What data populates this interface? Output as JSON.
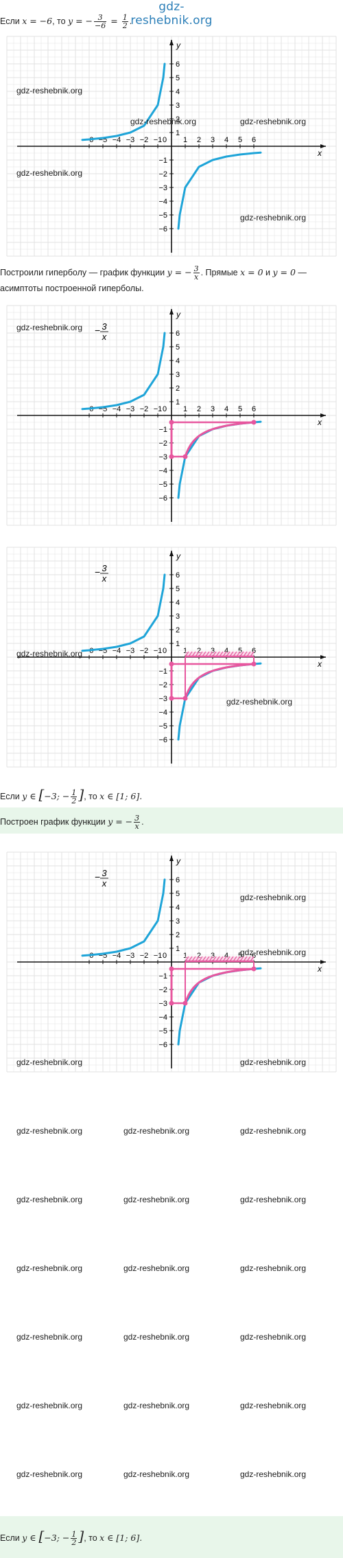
{
  "header_watermark": "gdz-reshebnik.org",
  "watermark_text": "gdz-reshebnik.org",
  "text": {
    "line1_prefix": "Если ",
    "line1_math_a": "x = −6",
    "line1_mid": ", то ",
    "line1_math_b": "y = −",
    "line1_frac1_num": "3",
    "line1_frac1_den": "−6",
    "line1_eq": " = ",
    "line1_frac2_num": "1",
    "line1_frac2_den": "2",
    "line1_end": ".",
    "line2a_prefix": "Построили гиперболу — график функции ",
    "line2a_math": "y = −",
    "line2a_frac_num": "3",
    "line2a_frac_den": "x",
    "line2a_mid": ". Прямые ",
    "line2a_math2": "x = 0",
    "line2a_and": " и ",
    "line2a_math3": "y = 0",
    "line2a_end": " —",
    "line2b": "асимптоты построенной гиперболы.",
    "line3_prefix": "Если ",
    "line3_math": "y ∈ ",
    "line3_interval_left": "−3; −",
    "line3_frac_num": "1",
    "line3_frac_den": "2",
    "line3_mid": ", то ",
    "line3_math2": "x ∈ [1; 6].",
    "line4_prefix": "Построен график функции ",
    "line4_math": "y = −",
    "line4_frac_num": "3",
    "line4_frac_den": "x",
    "line4_end": "."
  },
  "colors": {
    "hyperbola": "#1ea4d8",
    "highlight": "#e7569e",
    "grid": "#e2e2e2",
    "axis": "#111111",
    "green_band": "#e8f6ea"
  },
  "chart_data": [
    {
      "type": "line",
      "function": "y = -3/x",
      "xlim": [
        -7,
        7
      ],
      "ylim": [
        -7,
        7
      ],
      "x_ticks": [
        -6,
        -5,
        -4,
        -3,
        -2,
        -1,
        0,
        1,
        2,
        3,
        4,
        5,
        6
      ],
      "y_ticks": [
        -6,
        -5,
        -4,
        -3,
        -2,
        -1,
        1,
        2,
        3,
        4,
        5,
        6
      ],
      "xlabel": "x",
      "ylabel": "y",
      "series": [
        {
          "points": [
            [
              -6.5,
              0.46
            ],
            [
              -6,
              0.5
            ],
            [
              -5,
              0.6
            ],
            [
              -4,
              0.75
            ],
            [
              -3,
              1
            ],
            [
              -2,
              1.5
            ],
            [
              -1,
              3
            ],
            [
              -0.6,
              5
            ],
            [
              -0.5,
              6
            ],
            [
              0.5,
              -6
            ],
            [
              0.6,
              -5
            ],
            [
              1,
              -3
            ],
            [
              2,
              -1.5
            ],
            [
              3,
              -1
            ],
            [
              4,
              -0.75
            ],
            [
              5,
              -0.6
            ],
            [
              6,
              -0.5
            ],
            [
              6.5,
              -0.46
            ]
          ]
        }
      ]
    },
    {
      "type": "line",
      "function": "y = -3/x",
      "xlim": [
        -7,
        7
      ],
      "ylim": [
        -7,
        7
      ],
      "x_ticks": [
        -6,
        -5,
        -4,
        -3,
        -2,
        -1,
        0,
        1,
        2,
        3,
        4,
        5,
        6
      ],
      "y_ticks": [
        -6,
        -5,
        -4,
        -3,
        -2,
        -1,
        1,
        2,
        3,
        4,
        5,
        6
      ],
      "xlabel": "x",
      "ylabel": "y",
      "curve_label_num": "3",
      "curve_label_den": "x",
      "series": [
        {
          "points": [
            [
              -6.5,
              0.46
            ],
            [
              -6,
              0.5
            ],
            [
              -5,
              0.6
            ],
            [
              -4,
              0.75
            ],
            [
              -3,
              1
            ],
            [
              -2,
              1.5
            ],
            [
              -1,
              3
            ],
            [
              -0.6,
              5
            ],
            [
              -0.5,
              6
            ],
            [
              0.5,
              -6
            ],
            [
              0.6,
              -5
            ],
            [
              1,
              -3
            ],
            [
              2,
              -1.5
            ],
            [
              3,
              -1
            ],
            [
              4,
              -0.75
            ],
            [
              5,
              -0.6
            ],
            [
              6,
              -0.5
            ],
            [
              6.5,
              -0.46
            ]
          ]
        }
      ],
      "highlight_segment": [
        [
          1,
          -3
        ],
        [
          6,
          -0.5
        ]
      ],
      "projection_y": [
        -3,
        -0.5
      ]
    },
    {
      "type": "line",
      "function": "y = -3/x",
      "xlim": [
        -7,
        7
      ],
      "ylim": [
        -7,
        7
      ],
      "x_ticks": [
        -6,
        -5,
        -4,
        -3,
        -2,
        -1,
        0,
        1,
        2,
        3,
        4,
        5,
        6
      ],
      "y_ticks": [
        -6,
        -5,
        -4,
        -3,
        -2,
        -1,
        1,
        2,
        3,
        4,
        5,
        6
      ],
      "xlabel": "x",
      "ylabel": "y",
      "curve_label_num": "3",
      "curve_label_den": "x",
      "series": [
        {
          "points": [
            [
              -6.5,
              0.46
            ],
            [
              -6,
              0.5
            ],
            [
              -5,
              0.6
            ],
            [
              -4,
              0.75
            ],
            [
              -3,
              1
            ],
            [
              -2,
              1.5
            ],
            [
              -1,
              3
            ],
            [
              -0.6,
              5
            ],
            [
              -0.5,
              6
            ],
            [
              0.5,
              -6
            ],
            [
              0.6,
              -5
            ],
            [
              1,
              -3
            ],
            [
              2,
              -1.5
            ],
            [
              3,
              -1
            ],
            [
              4,
              -0.75
            ],
            [
              5,
              -0.6
            ],
            [
              6,
              -0.5
            ],
            [
              6.5,
              -0.46
            ]
          ]
        }
      ],
      "highlight_segment": [
        [
          1,
          -3
        ],
        [
          6,
          -0.5
        ]
      ],
      "projection_y": [
        -3,
        -0.5
      ],
      "x_interval": [
        1,
        6
      ]
    },
    {
      "type": "line",
      "function": "y = -3/x",
      "xlim": [
        -7,
        7
      ],
      "ylim": [
        -7,
        7
      ],
      "x_ticks": [
        -6,
        -5,
        -4,
        -3,
        -2,
        -1,
        0,
        1,
        2,
        3,
        4,
        5,
        6
      ],
      "y_ticks": [
        -6,
        -5,
        -4,
        -3,
        -2,
        -1,
        1,
        2,
        3,
        4,
        5,
        6
      ],
      "xlabel": "x",
      "ylabel": "y",
      "curve_label_num": "3",
      "curve_label_den": "x",
      "series": [
        {
          "points": [
            [
              -6.5,
              0.46
            ],
            [
              -6,
              0.5
            ],
            [
              -5,
              0.6
            ],
            [
              -4,
              0.75
            ],
            [
              -3,
              1
            ],
            [
              -2,
              1.5
            ],
            [
              -1,
              3
            ],
            [
              -0.6,
              5
            ],
            [
              -0.5,
              6
            ],
            [
              0.5,
              -6
            ],
            [
              0.6,
              -5
            ],
            [
              1,
              -3
            ],
            [
              2,
              -1.5
            ],
            [
              3,
              -1
            ],
            [
              4,
              -0.75
            ],
            [
              5,
              -0.6
            ],
            [
              6,
              -0.5
            ],
            [
              6.5,
              -0.46
            ]
          ]
        }
      ],
      "highlight_segment": [
        [
          1,
          -3
        ],
        [
          6,
          -0.5
        ]
      ],
      "projection_y": [
        -3,
        -0.5
      ],
      "x_interval": [
        1,
        6
      ]
    }
  ]
}
